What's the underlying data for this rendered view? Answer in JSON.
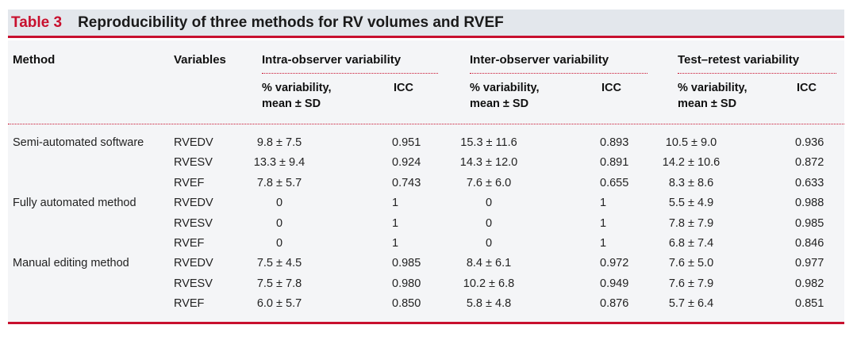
{
  "title": {
    "number": "Table 3",
    "text": "Reproducibility of three methods for RV volumes and RVEF"
  },
  "headers": {
    "method": "Method",
    "variables": "Variables",
    "intra": "Intra-observer variability",
    "inter": "Inter-observer variability",
    "test": "Test–retest variability",
    "pct_line1": "% variability,",
    "pct_line2": "mean ± SD",
    "icc": "ICC"
  },
  "rows": [
    {
      "method": "Semi-automated software",
      "variable": "RVEDV",
      "intra_pct": "9.8 ± 7.5",
      "intra_icc": "0.951",
      "inter_pct": "15.3 ± 11.6",
      "inter_icc": "0.893",
      "test_pct": "10.5 ± 9.0",
      "test_icc": "0.936"
    },
    {
      "method": "",
      "variable": "RVESV",
      "intra_pct": "13.3 ± 9.4",
      "intra_icc": "0.924",
      "inter_pct": "14.3 ± 12.0",
      "inter_icc": "0.891",
      "test_pct": "14.2 ± 10.6",
      "test_icc": "0.872"
    },
    {
      "method": "",
      "variable": "RVEF",
      "intra_pct": "7.8 ± 5.7",
      "intra_icc": "0.743",
      "inter_pct": "7.6 ± 6.0",
      "inter_icc": "0.655",
      "test_pct": "8.3 ± 8.6",
      "test_icc": "0.633"
    },
    {
      "method": "Fully automated method",
      "variable": "RVEDV",
      "intra_pct": "0",
      "intra_icc": "1",
      "inter_pct": "0",
      "inter_icc": "1",
      "test_pct": "5.5 ± 4.9",
      "test_icc": "0.988"
    },
    {
      "method": "",
      "variable": "RVESV",
      "intra_pct": "0",
      "intra_icc": "1",
      "inter_pct": "0",
      "inter_icc": "1",
      "test_pct": "7.8 ± 7.9",
      "test_icc": "0.985"
    },
    {
      "method": "",
      "variable": "RVEF",
      "intra_pct": "0",
      "intra_icc": "1",
      "inter_pct": "0",
      "inter_icc": "1",
      "test_pct": "6.8 ± 7.4",
      "test_icc": "0.846"
    },
    {
      "method": "Manual editing method",
      "variable": "RVEDV",
      "intra_pct": "7.5 ± 4.5",
      "intra_icc": "0.985",
      "inter_pct": "8.4 ± 6.1",
      "inter_icc": "0.972",
      "test_pct": "7.6 ± 5.0",
      "test_icc": "0.977"
    },
    {
      "method": "",
      "variable": "RVESV",
      "intra_pct": "7.5 ± 7.8",
      "intra_icc": "0.980",
      "inter_pct": "10.2 ± 6.8",
      "inter_icc": "0.949",
      "test_pct": "7.6 ± 7.9",
      "test_icc": "0.982"
    },
    {
      "method": "",
      "variable": "RVEF",
      "intra_pct": "6.0 ± 5.7",
      "intra_icc": "0.850",
      "inter_pct": "5.8 ± 4.8",
      "inter_icc": "0.876",
      "test_pct": "5.7 ± 6.4",
      "test_icc": "0.851"
    }
  ]
}
